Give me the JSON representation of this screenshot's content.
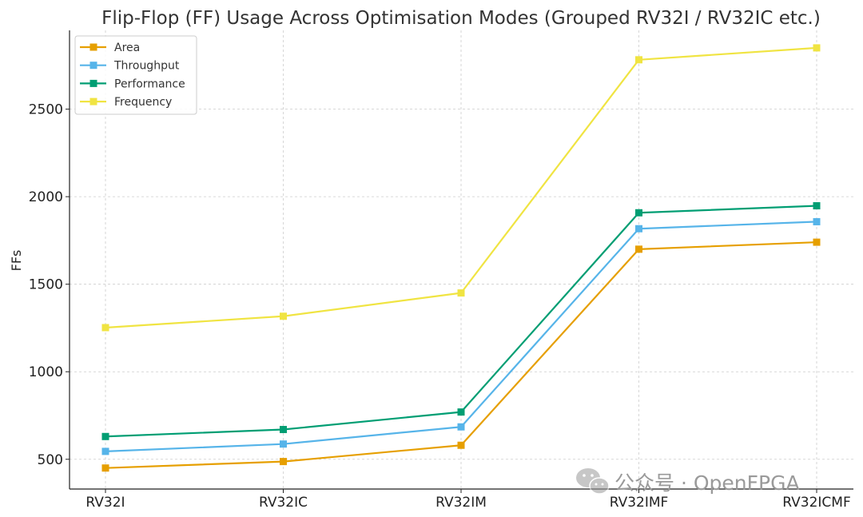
{
  "chart_data": {
    "type": "line",
    "title": "Flip-Flop (FF) Usage Across Optimisation Modes (Grouped RV32I / RV32IC etc.)",
    "xlabel": "",
    "ylabel": "FFs",
    "categories": [
      "RV32I",
      "RV32IC",
      "RV32IM",
      "RV32IMF",
      "RV32ICMF"
    ],
    "ylim": [
      330,
      2950
    ],
    "yticks": [
      500,
      1000,
      1500,
      2000,
      2500
    ],
    "grid": true,
    "legend_position": "top-left",
    "marker": "square",
    "series": [
      {
        "name": "Area",
        "color": "#E69F00",
        "values": [
          450,
          487,
          580,
          1700,
          1740
        ]
      },
      {
        "name": "Throughput",
        "color": "#56B4E9",
        "values": [
          545,
          587,
          685,
          1817,
          1857
        ]
      },
      {
        "name": "Performance",
        "color": "#009E73",
        "values": [
          630,
          670,
          770,
          1908,
          1948
        ]
      },
      {
        "name": "Frequency",
        "color": "#F0E442",
        "values": [
          1252,
          1317,
          1450,
          2782,
          2850
        ]
      }
    ]
  },
  "watermark": {
    "text": "公众号 · OpenFPGA",
    "icon": "wechat-icon"
  }
}
